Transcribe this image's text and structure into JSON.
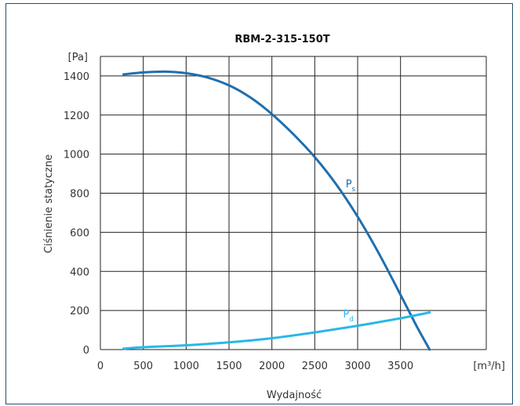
{
  "chart_data": {
    "type": "line",
    "title": "RBM-2-315-150T",
    "xlabel": "Wydajność",
    "ylabel": "Ciśnienie statyczne",
    "x_unit": "[m³/h]",
    "y_unit": "[Pa]",
    "xlim": [
      0,
      4500
    ],
    "ylim": [
      0,
      1500
    ],
    "x_ticks": [
      0,
      500,
      1000,
      1500,
      2000,
      2500,
      3000,
      3500
    ],
    "y_ticks": [
      0,
      200,
      400,
      600,
      800,
      1000,
      1200,
      1400
    ],
    "grid": true,
    "series": [
      {
        "name": "Ps",
        "label_main": "P",
        "label_sub": "s",
        "color": "#1f6fae",
        "label_at": [
          2860,
          830
        ],
        "points": [
          [
            270,
            1408
          ],
          [
            500,
            1418
          ],
          [
            750,
            1422
          ],
          [
            1000,
            1414
          ],
          [
            1250,
            1392
          ],
          [
            1500,
            1352
          ],
          [
            1750,
            1290
          ],
          [
            2000,
            1205
          ],
          [
            2250,
            1102
          ],
          [
            2500,
            985
          ],
          [
            2750,
            845
          ],
          [
            3000,
            680
          ],
          [
            3250,
            490
          ],
          [
            3500,
            280
          ],
          [
            3700,
            110
          ],
          [
            3840,
            0
          ]
        ]
      },
      {
        "name": "Pd",
        "label_main": "P",
        "label_sub": "d",
        "color": "#2ab7e6",
        "label_at": [
          2830,
          165
        ],
        "points": [
          [
            270,
            5
          ],
          [
            500,
            12
          ],
          [
            1000,
            22
          ],
          [
            1500,
            37
          ],
          [
            2000,
            58
          ],
          [
            2500,
            88
          ],
          [
            3000,
            122
          ],
          [
            3500,
            160
          ],
          [
            3840,
            190
          ]
        ]
      }
    ]
  }
}
